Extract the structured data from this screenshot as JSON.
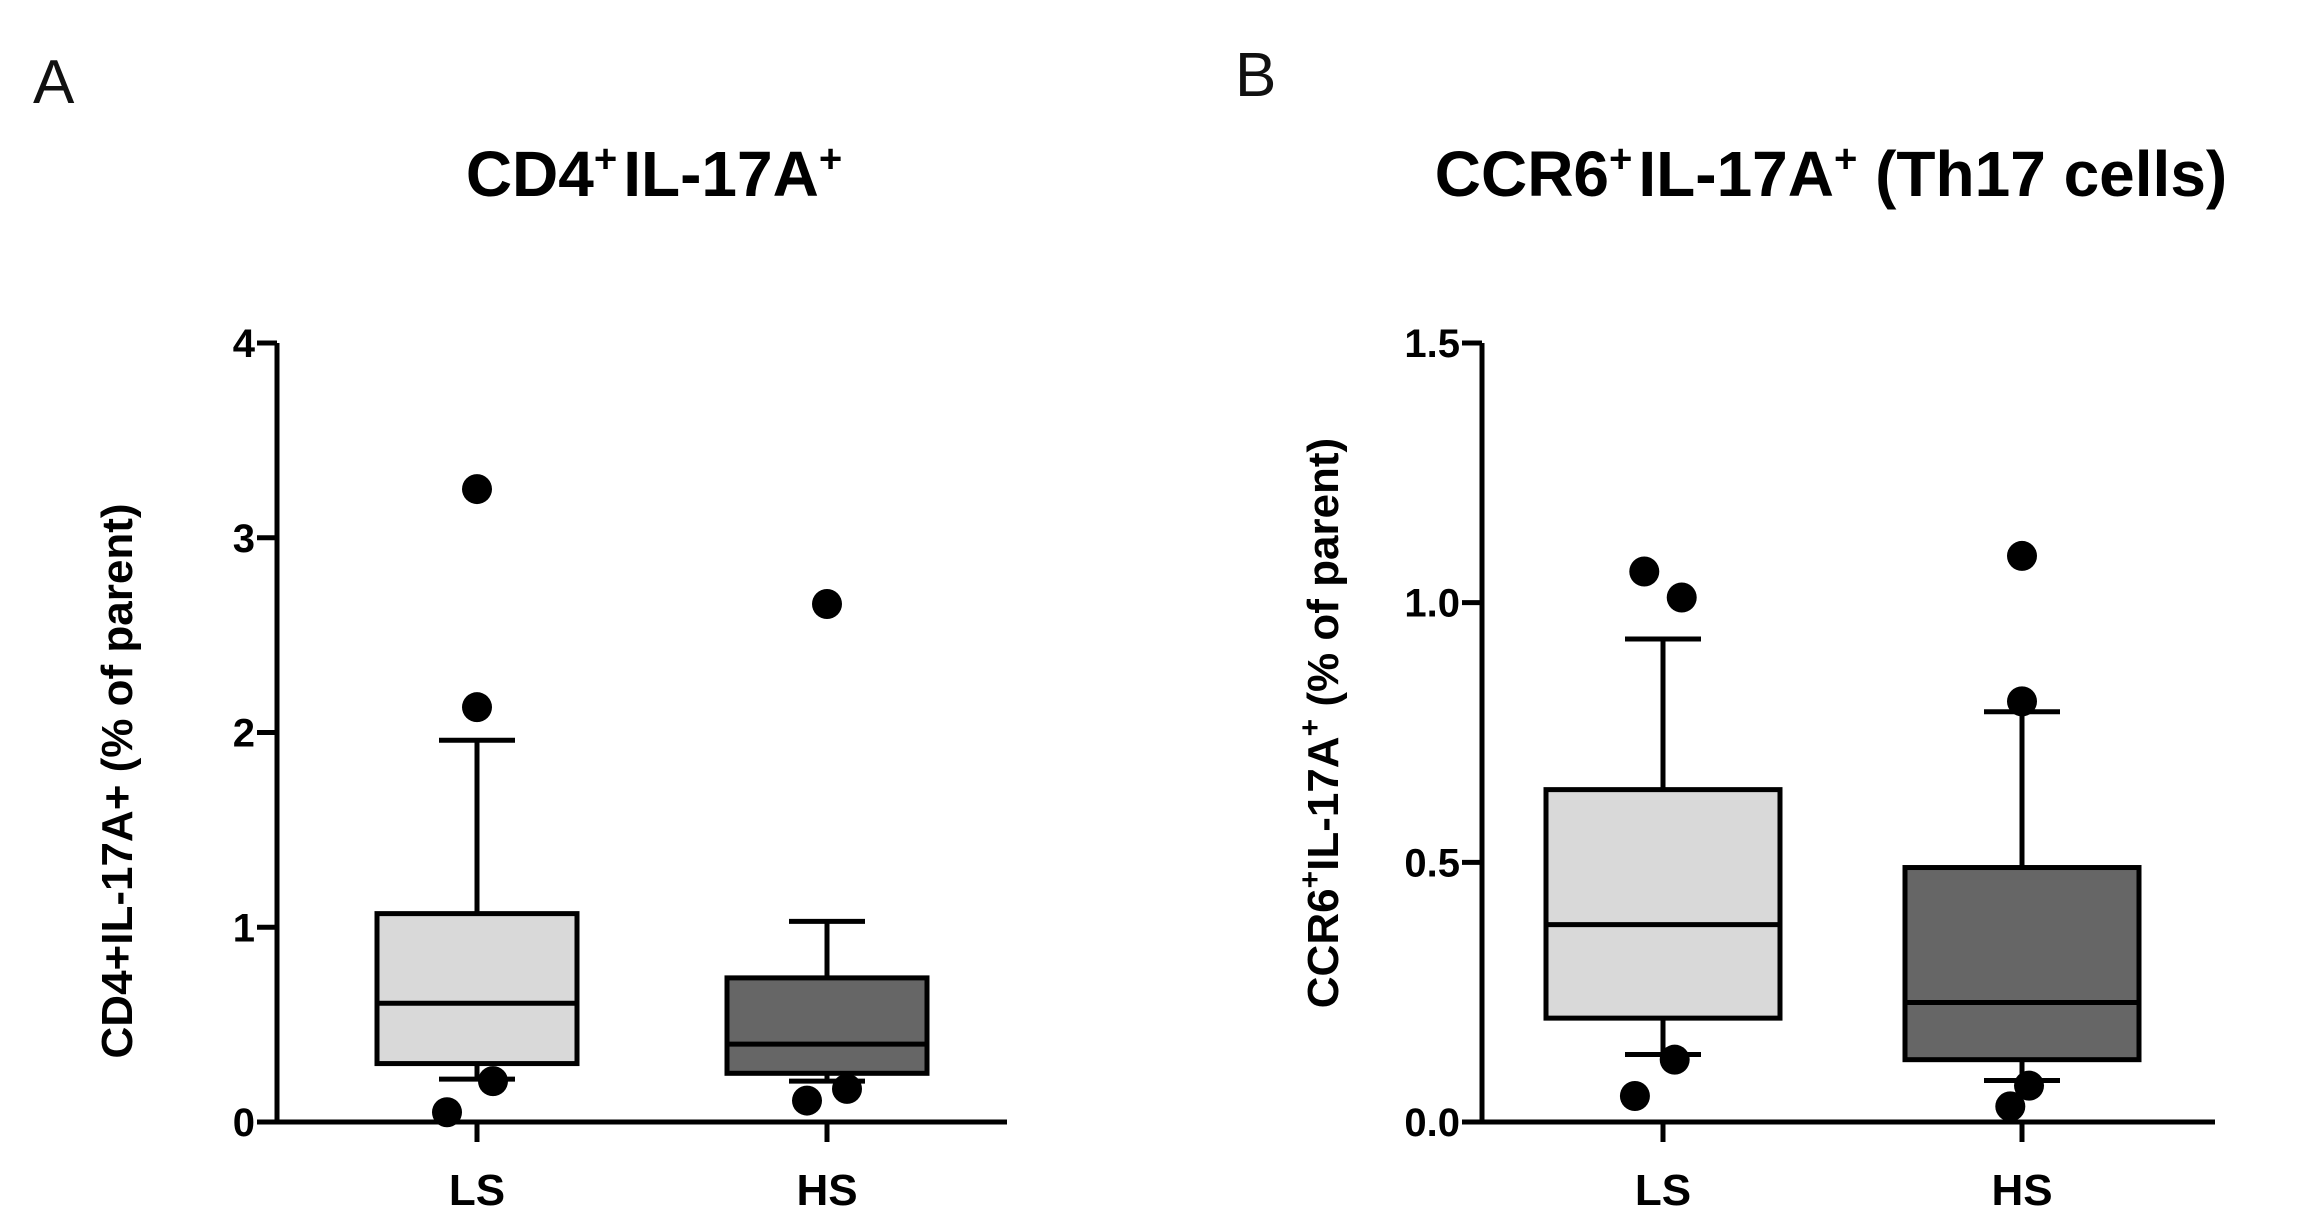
{
  "chart_data": [
    {
      "type": "box",
      "panel": "A",
      "title": {
        "main1": "CD4",
        "sup1": "+",
        "main2": "IL-17A",
        "sup2": "+"
      },
      "ylabel": "CD4+IL-17A+ (% of parent)",
      "xlabel": "",
      "ylim": [
        0,
        4
      ],
      "yticks": [
        0,
        1,
        2,
        3,
        4
      ],
      "ytick_labels": [
        "0",
        "1",
        "2",
        "3",
        "4"
      ],
      "categories": [
        "LS",
        "HS"
      ],
      "colors": [
        "#d9d9d9",
        "#666666"
      ],
      "boxes": [
        {
          "name": "LS",
          "whisker_low": 0.22,
          "q1": 0.3,
          "median": 0.61,
          "q3": 1.07,
          "whisker_high": 1.96,
          "outliers": [
            [
              0.0,
              3.25
            ],
            [
              0.0,
              2.13
            ],
            [
              0.08,
              0.21
            ],
            [
              -0.15,
              0.05
            ]
          ]
        },
        {
          "name": "HS",
          "whisker_low": 0.21,
          "q1": 0.25,
          "median": 0.4,
          "q3": 0.74,
          "whisker_high": 1.03,
          "outliers": [
            [
              0.0,
              2.66
            ],
            [
              0.1,
              0.17
            ],
            [
              -0.1,
              0.11
            ]
          ]
        }
      ]
    },
    {
      "type": "box",
      "panel": "B",
      "title": {
        "main1": "CCR6",
        "sup1": "+",
        "main2": "IL-17A",
        "sup2": "+",
        "main3": " (Th17 cells)"
      },
      "ylabel": {
        "part1": "CCR6",
        "sup1": "+",
        "part2": "IL-17A",
        "sup2": "+",
        "part3": " (% of parent)"
      },
      "xlabel": "",
      "ylim": [
        0,
        1.5
      ],
      "yticks": [
        0.0,
        0.5,
        1.0,
        1.5
      ],
      "ytick_labels": [
        "0.0",
        "0.5",
        "1.0",
        "1.5"
      ],
      "categories": [
        "LS",
        "HS"
      ],
      "colors": [
        "#d9d9d9",
        "#666666"
      ],
      "boxes": [
        {
          "name": "LS",
          "whisker_low": 0.13,
          "q1": 0.2,
          "median": 0.38,
          "q3": 0.64,
          "whisker_high": 0.93,
          "outliers": [
            [
              -0.08,
              1.06
            ],
            [
              0.08,
              1.01
            ],
            [
              0.05,
              0.12
            ],
            [
              -0.12,
              0.05
            ]
          ]
        },
        {
          "name": "HS",
          "whisker_low": 0.08,
          "q1": 0.12,
          "median": 0.23,
          "q3": 0.49,
          "whisker_high": 0.79,
          "outliers": [
            [
              0.0,
              1.09
            ],
            [
              0.0,
              0.81
            ],
            [
              0.03,
              0.07
            ],
            [
              -0.05,
              0.03
            ]
          ]
        }
      ]
    }
  ]
}
